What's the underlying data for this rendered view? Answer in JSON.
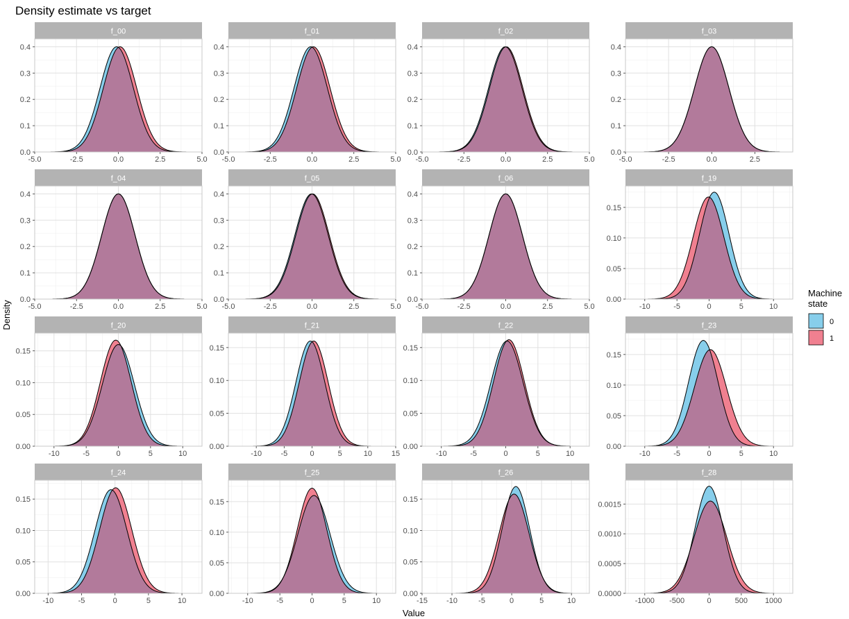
{
  "chart_data": {
    "type": "area",
    "title": "Density estimate vs target",
    "xlabel": "Value",
    "ylabel": "Density",
    "legend": {
      "title_lines": [
        "Machine",
        "state"
      ],
      "placement": "right",
      "entries": [
        {
          "label": "0",
          "color": "#87ceeb"
        },
        {
          "label": "1",
          "color": "#f08090"
        }
      ]
    },
    "overlap_color": "#b27a9b",
    "strip_color": "#b3b3b3",
    "grid": true,
    "panels": [
      {
        "label": "f_00",
        "xlim": [
          -5,
          5
        ],
        "ylim": [
          0,
          0.43
        ],
        "xticks": [
          -5.0,
          -2.5,
          0.0,
          2.5,
          5.0
        ],
        "xtick_labels": [
          "-5.0",
          "-2.5",
          "0.0",
          "2.5",
          "5.0"
        ],
        "yticks": [
          0.0,
          0.1,
          0.2,
          0.3,
          0.4
        ],
        "ytick_labels": [
          "0.0",
          "0.1",
          "0.2",
          "0.3",
          "0.4"
        ],
        "x_range": [
          -4.8,
          4.8
        ],
        "series": [
          {
            "name": "0",
            "mu": -0.1,
            "sd": 1.0,
            "peak": 0.4
          },
          {
            "name": "1",
            "mu": 0.1,
            "sd": 1.0,
            "peak": 0.4
          }
        ]
      },
      {
        "label": "f_01",
        "xlim": [
          -5,
          5
        ],
        "ylim": [
          0,
          0.43
        ],
        "xticks": [
          -5.0,
          -2.5,
          0.0,
          2.5,
          5.0
        ],
        "xtick_labels": [
          "-5.0",
          "-2.5",
          "0.0",
          "2.5",
          "5.0"
        ],
        "yticks": [
          0.0,
          0.1,
          0.2,
          0.3,
          0.4
        ],
        "ytick_labels": [
          "0.0",
          "0.1",
          "0.2",
          "0.3",
          "0.4"
        ],
        "x_range": [
          -4.8,
          4.8
        ],
        "series": [
          {
            "name": "0",
            "mu": -0.08,
            "sd": 1.0,
            "peak": 0.4
          },
          {
            "name": "1",
            "mu": 0.08,
            "sd": 1.0,
            "peak": 0.4
          }
        ]
      },
      {
        "label": "f_02",
        "xlim": [
          -5,
          5
        ],
        "ylim": [
          0,
          0.43
        ],
        "xticks": [
          -5.0,
          -2.5,
          0.0,
          2.5,
          5.0
        ],
        "xtick_labels": [
          "-5.0",
          "-2.5",
          "0.0",
          "2.5",
          "5.0"
        ],
        "yticks": [
          0.0,
          0.1,
          0.2,
          0.3,
          0.4
        ],
        "ytick_labels": [
          "0.0",
          "0.1",
          "0.2",
          "0.3",
          "0.4"
        ],
        "x_range": [
          -4.8,
          4.8
        ],
        "series": [
          {
            "name": "0",
            "mu": -0.03,
            "sd": 1.0,
            "peak": 0.4
          },
          {
            "name": "1",
            "mu": 0.03,
            "sd": 1.0,
            "peak": 0.4
          }
        ]
      },
      {
        "label": "f_03",
        "xlim": [
          -5,
          4.7
        ],
        "ylim": [
          0,
          0.43
        ],
        "xticks": [
          -5.0,
          -2.5,
          0.0,
          2.5
        ],
        "xtick_labels": [
          "-5.0",
          "-2.5",
          "0.0",
          "2.5"
        ],
        "yticks": [
          0.0,
          0.1,
          0.2,
          0.3,
          0.4
        ],
        "ytick_labels": [
          "0.0",
          "0.1",
          "0.2",
          "0.3",
          "0.4"
        ],
        "x_range": [
          -4.5,
          4.3
        ],
        "series": [
          {
            "name": "0",
            "mu": 0.0,
            "sd": 1.0,
            "peak": 0.4
          },
          {
            "name": "1",
            "mu": 0.0,
            "sd": 1.0,
            "peak": 0.4
          }
        ]
      },
      {
        "label": "f_04",
        "xlim": [
          -5,
          5
        ],
        "ylim": [
          0,
          0.43
        ],
        "xticks": [
          -5.0,
          -2.5,
          0.0,
          2.5,
          5.0
        ],
        "xtick_labels": [
          "-5.0",
          "-2.5",
          "0.0",
          "2.5",
          "5.0"
        ],
        "yticks": [
          0.0,
          0.1,
          0.2,
          0.3,
          0.4
        ],
        "ytick_labels": [
          "0.0",
          "0.1",
          "0.2",
          "0.3",
          "0.4"
        ],
        "x_range": [
          -4.8,
          4.8
        ],
        "series": [
          {
            "name": "0",
            "mu": 0.0,
            "sd": 1.0,
            "peak": 0.4
          },
          {
            "name": "1",
            "mu": 0.0,
            "sd": 1.0,
            "peak": 0.4
          }
        ]
      },
      {
        "label": "f_05",
        "xlim": [
          -5,
          5
        ],
        "ylim": [
          0,
          0.43
        ],
        "xticks": [
          -5.0,
          -2.5,
          0.0,
          2.5,
          5.0
        ],
        "xtick_labels": [
          "-5.0",
          "-2.5",
          "0.0",
          "2.5",
          "5.0"
        ],
        "yticks": [
          0.0,
          0.1,
          0.2,
          0.3,
          0.4
        ],
        "ytick_labels": [
          "0.0",
          "0.1",
          "0.2",
          "0.3",
          "0.4"
        ],
        "x_range": [
          -4.8,
          4.8
        ],
        "series": [
          {
            "name": "0",
            "mu": -0.03,
            "sd": 1.0,
            "peak": 0.4
          },
          {
            "name": "1",
            "mu": 0.03,
            "sd": 1.0,
            "peak": 0.4
          }
        ]
      },
      {
        "label": "f_06",
        "xlim": [
          -5,
          5
        ],
        "ylim": [
          0,
          0.43
        ],
        "xticks": [
          -5.0,
          -2.5,
          0.0,
          2.5,
          5.0
        ],
        "xtick_labels": [
          "-5.0",
          "-2.5",
          "0.0",
          "2.5",
          "5.0"
        ],
        "yticks": [
          0.0,
          0.1,
          0.2,
          0.3,
          0.4
        ],
        "ytick_labels": [
          "0.0",
          "0.1",
          "0.2",
          "0.3",
          "0.4"
        ],
        "x_range": [
          -4.8,
          4.8
        ],
        "series": [
          {
            "name": "0",
            "mu": 0.0,
            "sd": 1.0,
            "peak": 0.4
          },
          {
            "name": "1",
            "mu": 0.0,
            "sd": 1.0,
            "peak": 0.4
          }
        ]
      },
      {
        "label": "f_19",
        "xlim": [
          -13,
          13
        ],
        "ylim": [
          0,
          0.185
        ],
        "xticks": [
          -10,
          -5,
          0,
          5,
          10
        ],
        "xtick_labels": [
          "-10",
          "-5",
          "0",
          "5",
          "10"
        ],
        "yticks": [
          0.0,
          0.05,
          0.1,
          0.15
        ],
        "ytick_labels": [
          "0.00",
          "0.05",
          "0.10",
          "0.15"
        ],
        "x_range": [
          -12,
          12
        ],
        "series": [
          {
            "name": "0",
            "mu": 0.8,
            "sd": 2.3,
            "peak": 0.175
          },
          {
            "name": "1",
            "mu": -0.1,
            "sd": 2.4,
            "peak": 0.167
          }
        ]
      },
      {
        "label": "f_20",
        "xlim": [
          -13,
          13
        ],
        "ylim": [
          0,
          0.178
        ],
        "xticks": [
          -10,
          -5,
          0,
          5,
          10
        ],
        "xtick_labels": [
          "-10",
          "-5",
          "0",
          "5",
          "10"
        ],
        "yticks": [
          0.0,
          0.05,
          0.1,
          0.15
        ],
        "ytick_labels": [
          "0.00",
          "0.05",
          "0.10",
          "0.15"
        ],
        "x_range": [
          -12,
          12
        ],
        "series": [
          {
            "name": "0",
            "mu": 0.0,
            "sd": 2.5,
            "peak": 0.16
          },
          {
            "name": "1",
            "mu": -0.4,
            "sd": 2.4,
            "peak": 0.167
          }
        ]
      },
      {
        "label": "f_21",
        "xlim": [
          -15,
          15
        ],
        "ylim": [
          0,
          0.172
        ],
        "xticks": [
          -10,
          -5,
          0,
          5,
          10,
          15
        ],
        "xtick_labels": [
          "-10",
          "-5",
          "0",
          "5",
          "10",
          "15"
        ],
        "yticks": [
          0.0,
          0.05,
          0.1,
          0.15
        ],
        "ytick_labels": [
          "0.00",
          "0.05",
          "0.10",
          "0.15"
        ],
        "x_range": [
          -13,
          14
        ],
        "series": [
          {
            "name": "0",
            "mu": -0.3,
            "sd": 2.6,
            "peak": 0.16
          },
          {
            "name": "1",
            "mu": 0.3,
            "sd": 2.6,
            "peak": 0.16
          }
        ]
      },
      {
        "label": "f_22",
        "xlim": [
          -13,
          13
        ],
        "ylim": [
          0,
          0.172
        ],
        "xticks": [
          -10,
          -5,
          0,
          5,
          10
        ],
        "xtick_labels": [
          "-10",
          "-5",
          "0",
          "5",
          "10"
        ],
        "yticks": [
          0.0,
          0.05,
          0.1,
          0.15
        ],
        "ytick_labels": [
          "0.00",
          "0.05",
          "0.10",
          "0.15"
        ],
        "x_range": [
          -12,
          12
        ],
        "series": [
          {
            "name": "0",
            "mu": 0.2,
            "sd": 2.5,
            "peak": 0.16
          },
          {
            "name": "1",
            "mu": 0.5,
            "sd": 2.4,
            "peak": 0.162
          }
        ]
      },
      {
        "label": "f_23",
        "xlim": [
          -13,
          13
        ],
        "ylim": [
          0,
          0.185
        ],
        "xticks": [
          -10,
          -5,
          0,
          5,
          10
        ],
        "xtick_labels": [
          "-10",
          "-5",
          "0",
          "5",
          "10"
        ],
        "yticks": [
          0.0,
          0.05,
          0.1,
          0.15
        ],
        "ytick_labels": [
          "0.00",
          "0.05",
          "0.10",
          "0.15"
        ],
        "x_range": [
          -12,
          12
        ],
        "series": [
          {
            "name": "0",
            "mu": -0.9,
            "sd": 2.3,
            "peak": 0.173
          },
          {
            "name": "1",
            "mu": 0.2,
            "sd": 2.5,
            "peak": 0.158
          }
        ]
      },
      {
        "label": "f_24",
        "xlim": [
          -12,
          13
        ],
        "ylim": [
          0,
          0.18
        ],
        "xticks": [
          -10,
          -5,
          0,
          5,
          10
        ],
        "xtick_labels": [
          "-10",
          "-5",
          "0",
          "5",
          "10"
        ],
        "yticks": [
          0.0,
          0.05,
          0.1,
          0.15
        ],
        "ytick_labels": [
          "0.00",
          "0.05",
          "0.10",
          "0.15"
        ],
        "x_range": [
          -11,
          12
        ],
        "series": [
          {
            "name": "0",
            "mu": -0.6,
            "sd": 2.4,
            "peak": 0.165
          },
          {
            "name": "1",
            "mu": 0.1,
            "sd": 2.4,
            "peak": 0.168
          }
        ]
      },
      {
        "label": "f_25",
        "xlim": [
          -13,
          13
        ],
        "ylim": [
          0,
          0.185
        ],
        "xticks": [
          -10,
          -5,
          0,
          5,
          10
        ],
        "xtick_labels": [
          "-10",
          "-5",
          "0",
          "5",
          "10"
        ],
        "yticks": [
          0.0,
          0.05,
          0.1,
          0.15
        ],
        "ytick_labels": [
          "0.00",
          "0.05",
          "0.10",
          "0.15"
        ],
        "x_range": [
          -12,
          12
        ],
        "series": [
          {
            "name": "0",
            "mu": 0.3,
            "sd": 2.5,
            "peak": 0.16
          },
          {
            "name": "1",
            "mu": 0.0,
            "sd": 2.3,
            "peak": 0.172
          }
        ]
      },
      {
        "label": "f_26",
        "xlim": [
          -15,
          13
        ],
        "ylim": [
          0,
          0.18
        ],
        "xticks": [
          -15,
          -10,
          -5,
          0,
          5,
          10
        ],
        "xtick_labels": [
          "-15",
          "-10",
          "-5",
          "0",
          "5",
          "10"
        ],
        "yticks": [
          0.0,
          0.05,
          0.1,
          0.15
        ],
        "ytick_labels": [
          "0.00",
          "0.05",
          "0.10",
          "0.15"
        ],
        "x_range": [
          -14,
          12
        ],
        "series": [
          {
            "name": "0",
            "mu": 0.7,
            "sd": 2.3,
            "peak": 0.17
          },
          {
            "name": "1",
            "mu": 0.4,
            "sd": 2.5,
            "peak": 0.158
          }
        ]
      },
      {
        "label": "f_28",
        "xlim": [
          -1300,
          1300
        ],
        "ylim": [
          0,
          0.0019
        ],
        "xticks": [
          -1000,
          -500,
          0,
          500,
          1000
        ],
        "xtick_labels": [
          "-1000",
          "-500",
          "0",
          "500",
          "1000"
        ],
        "yticks": [
          0.0,
          0.0005,
          0.001,
          0.0015
        ],
        "ytick_labels": [
          "0.0000",
          "0.0005",
          "0.0010",
          "0.0015"
        ],
        "x_range": [
          -1200,
          1200
        ],
        "series": [
          {
            "name": "0",
            "mu": 0,
            "sd": 220,
            "peak": 0.0018
          },
          {
            "name": "1",
            "mu": 20,
            "sd": 255,
            "peak": 0.00155
          }
        ]
      }
    ]
  }
}
